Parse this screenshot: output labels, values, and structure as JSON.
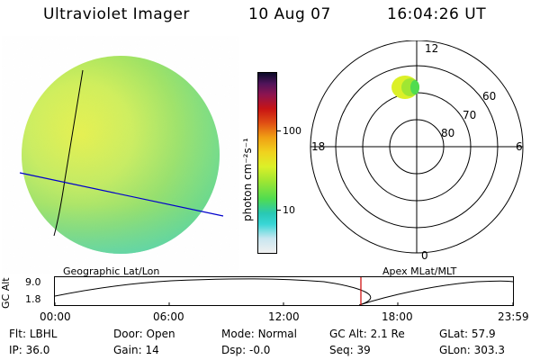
{
  "header": {
    "title": "Ultraviolet Imager",
    "date": "10 Aug 07",
    "time": "16:04:26 UT"
  },
  "colorbar": {
    "unit_label": "photon cm⁻²s⁻¹",
    "ticks": [
      "100",
      "10"
    ],
    "colors": [
      "#f0f0f0",
      "#c8e6f0",
      "#38d6d6",
      "#28c8b4",
      "#50dc50",
      "#a0e632",
      "#dcf028",
      "#f0d21e",
      "#f0a014",
      "#e05014",
      "#c81414",
      "#8c1450",
      "#50145a",
      "#0a0a28"
    ]
  },
  "polar_plot": {
    "mlt_labels": {
      "top": "12",
      "bottom": "0",
      "left": "18",
      "right": "6"
    },
    "lat_labels": [
      "60",
      "70",
      "80"
    ]
  },
  "timeline": {
    "ylabel": "GC Alt",
    "y_ticks": [
      "9.0",
      "1.8"
    ],
    "left_title": "Geographic Lat/Lon",
    "right_title": "Apex MLat/MLT",
    "x_ticks": [
      "00:00",
      "06:00",
      "12:00",
      "18:00",
      "23:59"
    ],
    "current_time": "16:04"
  },
  "info": {
    "filter_label": "Flt:",
    "filter_value": "LBHL",
    "ip_label": "IP:",
    "ip_value": "36.0",
    "door_label": "Door:",
    "door_value": "Open",
    "gain_label": "Gain:",
    "gain_value": "14",
    "mode_label": "Mode:",
    "mode_value": "Normal",
    "dsp_label": "Dsp:",
    "dsp_value": "-0.0",
    "gcalt_label": "GC Alt:",
    "gcalt_value": "2.1 Re",
    "seq_label": "Seq:",
    "seq_value": "39",
    "glat_label": "GLat:",
    "glat_value": "57.9",
    "glon_label": "GLon:",
    "glon_value": "303.3"
  },
  "colors": {
    "grid_line": "#0000cc",
    "time_marker": "#cc0000"
  }
}
